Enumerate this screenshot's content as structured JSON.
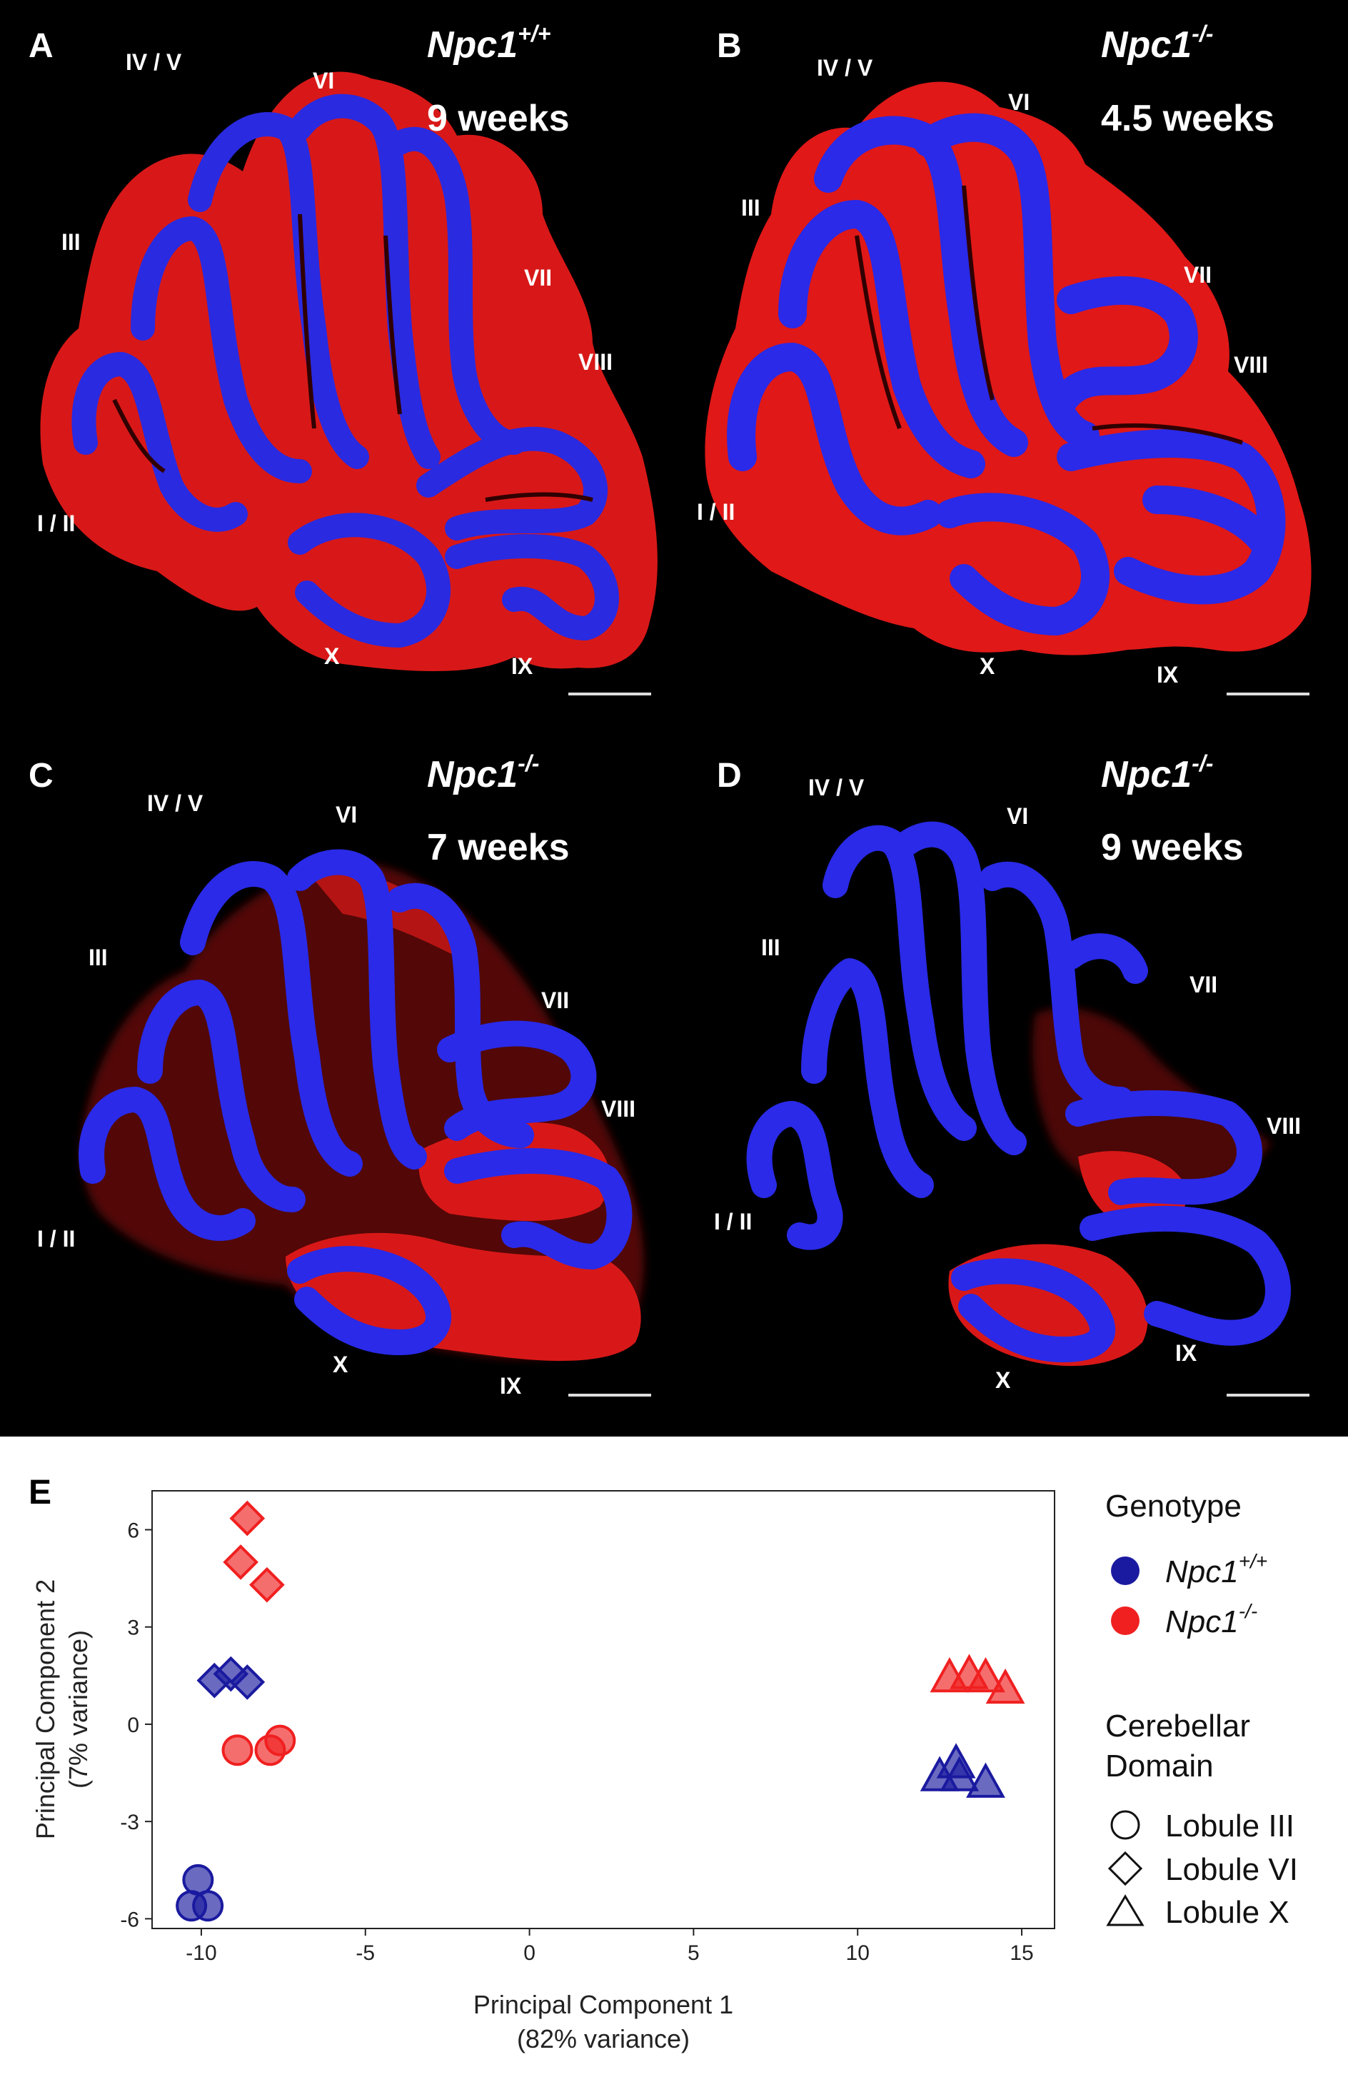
{
  "panels": [
    {
      "letter": "A",
      "genotype": "Npc1",
      "genotype_sup": "+/+",
      "age": "9 weeks",
      "lobules": [
        "IV / V",
        "VI",
        "III",
        "VII",
        "VIII",
        "I / II",
        "X",
        "IX"
      ]
    },
    {
      "letter": "B",
      "genotype": "Npc1",
      "genotype_sup": "-/-",
      "age": "4.5 weeks",
      "lobules": [
        "IV / V",
        "VI",
        "III",
        "VII",
        "VIII",
        "I / II",
        "X",
        "IX"
      ]
    },
    {
      "letter": "C",
      "genotype": "Npc1",
      "genotype_sup": "-/-",
      "age": "7 weeks",
      "lobules": [
        "IV / V",
        "VI",
        "III",
        "VII",
        "VIII",
        "I / II",
        "X",
        "IX"
      ]
    },
    {
      "letter": "D",
      "genotype": "Npc1",
      "genotype_sup": "-/-",
      "age": "9 weeks",
      "lobules": [
        "IV / V",
        "VI",
        "III",
        "VII",
        "VIII",
        "I / II",
        "X",
        "IX"
      ]
    }
  ],
  "colors": {
    "background": "#000000",
    "purkinje_red": "#e01818",
    "granule_blue": "#2a2ae8",
    "wild_type": "#1a1aa0",
    "mutant": "#f02020"
  },
  "chart_data": {
    "panel_letter": "E",
    "type": "scatter",
    "xlabel": "Principal Component 1",
    "xlabel_sub": "(82% variance)",
    "ylabel": "Principal Component 2",
    "ylabel_sub": "(7% variance)",
    "xlim": [
      -11.5,
      16
    ],
    "ylim": [
      -6.3,
      7.2
    ],
    "xticks": [
      -10,
      -5,
      0,
      5,
      10,
      15
    ],
    "xtick_labels": [
      "-10",
      "-5",
      "0",
      "5",
      "10",
      "15"
    ],
    "yticks": [
      -6,
      -3,
      0,
      3,
      6
    ],
    "ytick_labels": [
      "-6",
      "-3",
      "0",
      "3",
      "6"
    ],
    "grid": false,
    "legend_position": "right",
    "legend": {
      "genotype_title": "Genotype",
      "genotypes": [
        {
          "label": "Npc1",
          "sup": "+/+",
          "color": "#1a1aa0"
        },
        {
          "label": "Npc1",
          "sup": "-/-",
          "color": "#f02020"
        }
      ],
      "domain_title_line1": "Cerebellar",
      "domain_title_line2": "Domain",
      "domains": [
        {
          "label": "Lobule III",
          "shape": "circle"
        },
        {
          "label": "Lobule VI",
          "shape": "diamond"
        },
        {
          "label": "Lobule X",
          "shape": "triangle"
        }
      ]
    },
    "series": [
      {
        "genotype": "+/+",
        "domain": "Lobule III",
        "shape": "circle",
        "color": "#1a1aa0",
        "points": [
          [
            -10.1,
            -4.8
          ],
          [
            -10.3,
            -5.6
          ],
          [
            -9.8,
            -5.6
          ]
        ]
      },
      {
        "genotype": "-/-",
        "domain": "Lobule III",
        "shape": "circle",
        "color": "#f02020",
        "points": [
          [
            -8.9,
            -0.8
          ],
          [
            -7.9,
            -0.8
          ],
          [
            -7.6,
            -0.5
          ]
        ]
      },
      {
        "genotype": "+/+",
        "domain": "Lobule VI",
        "shape": "diamond",
        "color": "#1a1aa0",
        "points": [
          [
            -9.6,
            1.35
          ],
          [
            -9.1,
            1.55
          ],
          [
            -8.6,
            1.3
          ]
        ]
      },
      {
        "genotype": "-/-",
        "domain": "Lobule VI",
        "shape": "diamond",
        "color": "#f02020",
        "points": [
          [
            -8.6,
            6.35
          ],
          [
            -8.8,
            5.0
          ],
          [
            -8.0,
            4.3
          ]
        ]
      },
      {
        "genotype": "+/+",
        "domain": "Lobule X",
        "shape": "triangle",
        "color": "#1a1aa0",
        "points": [
          [
            12.5,
            -1.6
          ],
          [
            13.0,
            -1.2
          ],
          [
            13.1,
            -1.6
          ],
          [
            13.9,
            -1.8
          ]
        ]
      },
      {
        "genotype": "-/-",
        "domain": "Lobule X",
        "shape": "triangle",
        "color": "#f02020",
        "points": [
          [
            12.8,
            1.45
          ],
          [
            13.4,
            1.55
          ],
          [
            13.9,
            1.45
          ],
          [
            14.5,
            1.1
          ]
        ]
      }
    ]
  }
}
